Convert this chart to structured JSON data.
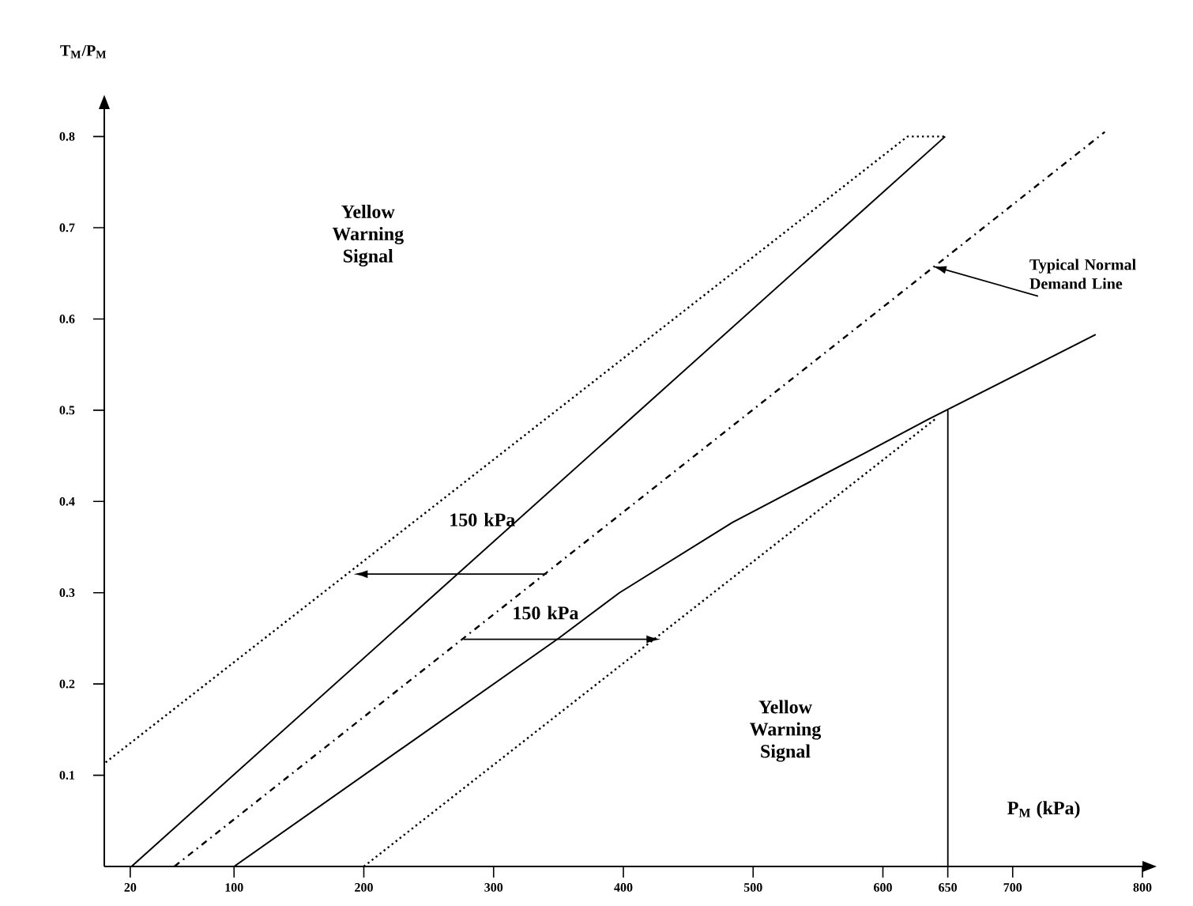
{
  "chart_data": {
    "type": "line",
    "ylabel": "T$_{M}$/P$_{M}$",
    "xlabel": "P$_{M}$ (kPa)",
    "xlim": [
      0,
      800
    ],
    "ylim": [
      0,
      0.83
    ],
    "xticks": [
      20,
      100,
      200,
      300,
      400,
      500,
      600,
      650,
      700,
      800
    ],
    "yticks": [
      0.1,
      0.2,
      0.3,
      0.4,
      0.5,
      0.6,
      0.7,
      0.8
    ],
    "grid": false,
    "marker": "none",
    "series": [
      {
        "color": "#000000",
        "line_style": "dotted",
        "x": [
          1,
          619,
          648
        ],
        "values": [
          0.114,
          0.8,
          0.8
        ]
      },
      {
        "color": "#000000",
        "line_style": "solid",
        "x": [
          21,
          648
        ],
        "values": [
          0,
          0.8
        ]
      },
      {
        "color": "#000000",
        "line_style": "dashed",
        "x": [
          54,
          771
        ],
        "values": [
          0,
          0.805
        ]
      },
      {
        "color": "#000000",
        "line_style": "solid",
        "x": [
          100,
          350,
          397,
          484,
          586,
          635,
          764
        ],
        "values": [
          0,
          0.25,
          0.3,
          0.377,
          0.453,
          0.49,
          0.583
        ]
      },
      {
        "color": "#000000",
        "line_style": "dotted",
        "x": [
          200,
          640
        ],
        "values": [
          0,
          0.49
        ]
      },
      {
        "color": "#000000",
        "line_style": "solid",
        "x": [
          650,
          650
        ],
        "values": [
          0,
          0.5
        ]
      }
    ],
    "annotations": [
      "Yellow Warning Signal",
      "150 kPa",
      "150 kPa",
      {
        "text": "Typical Normal Demand Line",
        "x": 638,
        "y": 0.658
      },
      "Yellow Warning Signal"
    ]
  }
}
